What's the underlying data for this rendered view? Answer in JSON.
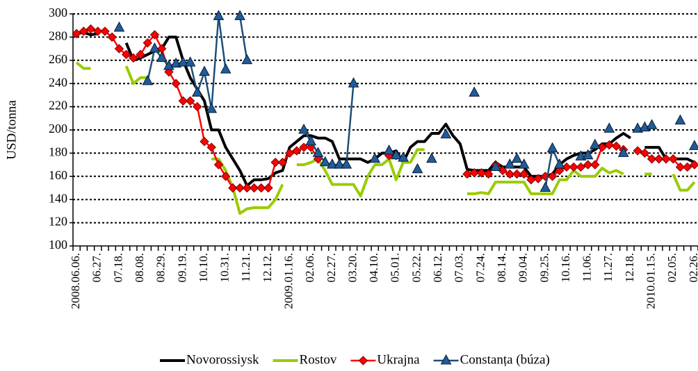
{
  "chart_data": {
    "type": "line",
    "y_axis_label": "USD/tonna",
    "categories": [
      "2008.06.06.",
      null,
      null,
      "06.27.",
      null,
      null,
      "07.18.",
      null,
      null,
      "08.08.",
      null,
      null,
      "08.29.",
      null,
      null,
      "09.19.",
      null,
      null,
      "10.10.",
      null,
      null,
      "10.31.",
      null,
      null,
      "11.21.",
      null,
      null,
      "12.12.",
      null,
      null,
      "2009.01.16.",
      null,
      null,
      "02.06.",
      null,
      null,
      "02.27.",
      null,
      null,
      "03.20.",
      null,
      null,
      "04.10.",
      null,
      null,
      "05.01.",
      null,
      null,
      "05.22.",
      null,
      null,
      "06.12.",
      null,
      null,
      "07.03.",
      null,
      null,
      "07.24.",
      null,
      null,
      "08.14.",
      null,
      null,
      "09.04.",
      null,
      null,
      "09.25.",
      null,
      null,
      "10.16.",
      null,
      null,
      "11.06.",
      null,
      null,
      "11.27.",
      null,
      null,
      "12.18.",
      null,
      null,
      "2010.01.15.",
      null,
      null,
      "02.05.",
      null,
      null,
      "02.26."
    ],
    "series": [
      {
        "name": "Novorossiysk",
        "color": "#000000",
        "marker": "none",
        "values": [
          283,
          284,
          282,
          283,
          null,
          null,
          null,
          275,
          260,
          262,
          265,
          268,
          270,
          280,
          280,
          260,
          245,
          235,
          225,
          200,
          200,
          185,
          175,
          165,
          152,
          157,
          157,
          158,
          163,
          165,
          185,
          190,
          195,
          195,
          193,
          193,
          190,
          175,
          175,
          175,
          175,
          172,
          175,
          180,
          180,
          182,
          172,
          185,
          190,
          190,
          197,
          197,
          205,
          195,
          188,
          166,
          165,
          165,
          165,
          172,
          168,
          168,
          168,
          168,
          160,
          160,
          160,
          162,
          170,
          175,
          178,
          180,
          180,
          183,
          188,
          188,
          193,
          197,
          193,
          null,
          185,
          185,
          185,
          175,
          175,
          175,
          175,
          172
        ]
      },
      {
        "name": "Rostov",
        "color": "#99cc00",
        "marker": "none",
        "values": [
          258,
          253,
          253,
          null,
          null,
          null,
          null,
          255,
          240,
          245,
          245,
          null,
          null,
          null,
          null,
          null,
          null,
          null,
          null,
          175,
          175,
          165,
          150,
          128,
          132,
          133,
          133,
          133,
          140,
          153,
          null,
          170,
          170,
          172,
          175,
          165,
          153,
          153,
          153,
          153,
          143,
          160,
          170,
          170,
          175,
          157,
          172,
          172,
          183,
          183,
          null,
          null,
          null,
          null,
          null,
          145,
          145,
          146,
          145,
          155,
          155,
          155,
          155,
          155,
          145,
          145,
          145,
          145,
          157,
          157,
          165,
          160,
          160,
          160,
          167,
          163,
          165,
          162,
          null,
          null,
          162,
          162,
          null,
          null,
          162,
          148,
          148,
          155
        ]
      },
      {
        "name": "Ukrajna",
        "color": "#ff0000",
        "marker": "diamond",
        "values": [
          283,
          285,
          287,
          285,
          285,
          280,
          270,
          265,
          262,
          265,
          275,
          282,
          270,
          250,
          240,
          225,
          225,
          220,
          190,
          185,
          170,
          160,
          150,
          150,
          150,
          150,
          150,
          150,
          172,
          172,
          180,
          182,
          185,
          185,
          175,
          null,
          null,
          null,
          null,
          null,
          null,
          null,
          null,
          null,
          178,
          178,
          null,
          null,
          null,
          null,
          null,
          null,
          null,
          null,
          null,
          162,
          163,
          163,
          162,
          170,
          165,
          162,
          162,
          162,
          157,
          158,
          160,
          160,
          165,
          168,
          168,
          168,
          170,
          170,
          185,
          187,
          186,
          183,
          null,
          182,
          180,
          175,
          175,
          175,
          175,
          168,
          168,
          170
        ]
      },
      {
        "name": "Constanța (búza)",
        "color": "#1f4e79",
        "marker": "triangle",
        "values": [
          null,
          null,
          null,
          null,
          null,
          null,
          288,
          null,
          null,
          null,
          242,
          270,
          262,
          255,
          257,
          258,
          258,
          232,
          250,
          218,
          298,
          252,
          null,
          298,
          260,
          null,
          null,
          null,
          null,
          null,
          null,
          null,
          200,
          190,
          180,
          172,
          170,
          170,
          170,
          240,
          null,
          null,
          175,
          null,
          182,
          178,
          176,
          null,
          166,
          null,
          175,
          null,
          196,
          null,
          null,
          null,
          232,
          null,
          null,
          168,
          null,
          170,
          175,
          170,
          null,
          null,
          150,
          184,
          170,
          null,
          null,
          177,
          178,
          187,
          null,
          201,
          null,
          180,
          null,
          201,
          202,
          204,
          null,
          null,
          null,
          208,
          null,
          186
        ]
      }
    ],
    "ylim": [
      100,
      300
    ],
    "yticks": [
      100,
      120,
      140,
      160,
      180,
      200,
      220,
      240,
      260,
      280,
      300
    ],
    "grid": true,
    "grid_style": "dotted",
    "legend_position": "bottom"
  }
}
